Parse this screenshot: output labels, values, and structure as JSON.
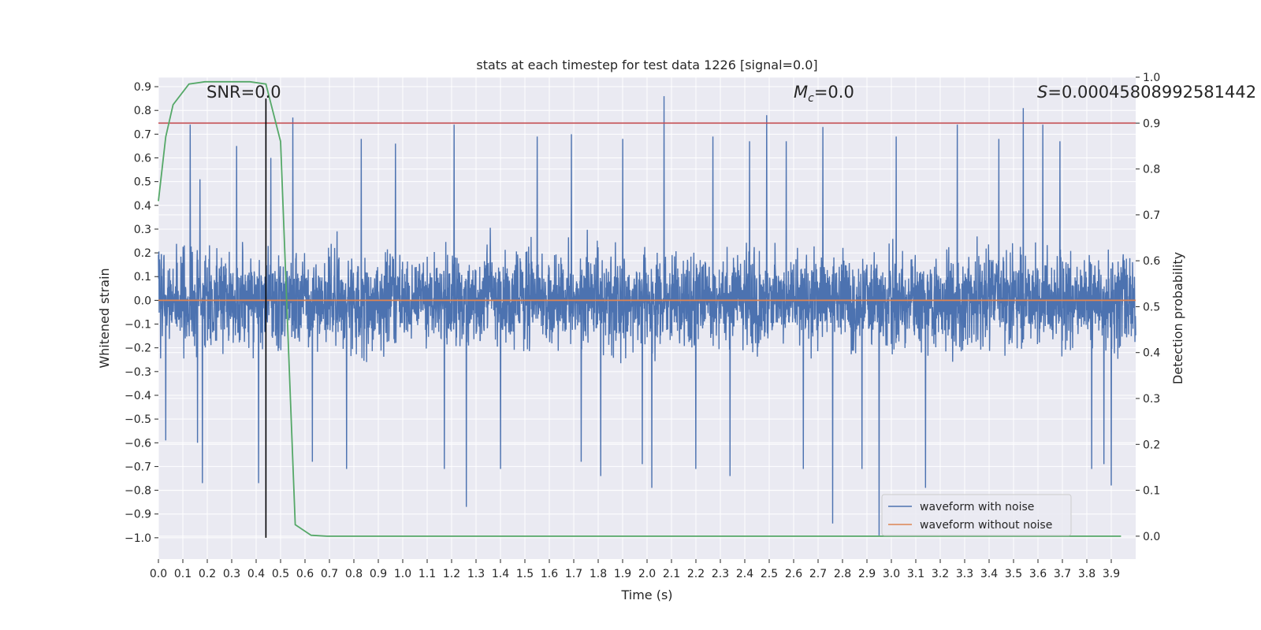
{
  "chart_data": {
    "type": "line",
    "title": "stats at each timestep for test data 1226 [signal=0.0]",
    "xlabel": "Time (s)",
    "ylabel_left": "Whitened strain",
    "ylabel_right": "Detection probability",
    "xlim": [
      0.0,
      4.0
    ],
    "ylim_left": [
      -1.09,
      0.94
    ],
    "ylim_right": [
      -0.05,
      1.0
    ],
    "x_ticks": [
      0.0,
      0.1,
      0.2,
      0.3,
      0.4,
      0.5,
      0.6,
      0.7,
      0.8,
      0.9,
      1.0,
      1.1,
      1.2,
      1.3,
      1.4,
      1.5,
      1.6,
      1.7,
      1.8,
      1.9,
      2.0,
      2.1,
      2.2,
      2.3,
      2.4,
      2.5,
      2.6,
      2.7,
      2.8,
      2.9,
      3.0,
      3.1,
      3.2,
      3.3,
      3.4,
      3.5,
      3.6,
      3.7,
      3.8,
      3.9
    ],
    "x_tick_labels": [
      "0.0",
      "0.1",
      "0.2",
      "0.3",
      "0.4",
      "0.5",
      "0.6",
      "0.7",
      "0.8",
      "0.9",
      "1.0",
      "1.1",
      "1.2",
      "1.3",
      "1.4",
      "1.5",
      "1.6",
      "1.7",
      "1.8",
      "1.9",
      "2.0",
      "2.1",
      "2.2",
      "2.3",
      "2.4",
      "2.5",
      "2.6",
      "2.7",
      "2.8",
      "2.9",
      "3.0",
      "3.1",
      "3.2",
      "3.3",
      "3.4",
      "3.5",
      "3.6",
      "3.7",
      "3.8",
      "3.9"
    ],
    "y_left_ticks": [
      0.9,
      0.8,
      0.7,
      0.6,
      0.5,
      0.4,
      0.3,
      0.2,
      0.1,
      0.0,
      -0.1,
      -0.2,
      -0.3,
      -0.4,
      -0.5,
      -0.6,
      -0.7,
      -0.8,
      -0.9,
      -1.0
    ],
    "y_left_tick_labels": [
      "0.9",
      "0.8",
      "0.7",
      "0.6",
      "0.5",
      "0.4",
      "0.3",
      "0.2",
      "0.1",
      "0.0",
      "−0.1",
      "−0.2",
      "−0.3",
      "−0.4",
      "−0.5",
      "−0.6",
      "−0.7",
      "−0.8",
      "−0.9",
      "−1.0"
    ],
    "y_right_ticks": [
      1.0,
      0.9,
      0.8,
      0.7,
      0.6,
      0.5,
      0.4,
      0.3,
      0.2,
      0.1,
      0.0
    ],
    "y_right_tick_labels": [
      "1.0",
      "0.9",
      "0.8",
      "0.7",
      "0.6",
      "0.5",
      "0.4",
      "0.3",
      "0.2",
      "0.1",
      "0.0"
    ],
    "grid": true,
    "series": [
      {
        "name": "waveform with noise",
        "axis": "left",
        "color": "#4c72b0",
        "style": "dense-noise",
        "x_range": [
          0.0,
          4.0
        ],
        "spikes": [
          {
            "x": 0.03,
            "y": 0.62
          },
          {
            "x": 0.03,
            "y": -0.59
          },
          {
            "x": 0.13,
            "y": 0.74
          },
          {
            "x": 0.16,
            "y": -0.6
          },
          {
            "x": 0.17,
            "y": 0.51
          },
          {
            "x": 0.18,
            "y": -0.77
          },
          {
            "x": 0.32,
            "y": 0.65
          },
          {
            "x": 0.41,
            "y": -0.77
          },
          {
            "x": 0.46,
            "y": 0.6
          },
          {
            "x": 0.55,
            "y": 0.77
          },
          {
            "x": 0.63,
            "y": -0.68
          },
          {
            "x": 0.77,
            "y": -0.71
          },
          {
            "x": 0.83,
            "y": 0.68
          },
          {
            "x": 0.97,
            "y": 0.66
          },
          {
            "x": 1.17,
            "y": -0.71
          },
          {
            "x": 1.21,
            "y": 0.74
          },
          {
            "x": 1.26,
            "y": -0.87
          },
          {
            "x": 1.4,
            "y": -0.71
          },
          {
            "x": 1.55,
            "y": 0.69
          },
          {
            "x": 1.69,
            "y": 0.7
          },
          {
            "x": 1.73,
            "y": -0.68
          },
          {
            "x": 1.81,
            "y": -0.74
          },
          {
            "x": 1.9,
            "y": 0.68
          },
          {
            "x": 1.98,
            "y": -0.69
          },
          {
            "x": 2.02,
            "y": -0.79
          },
          {
            "x": 2.07,
            "y": 0.86
          },
          {
            "x": 2.2,
            "y": -0.71
          },
          {
            "x": 2.27,
            "y": 0.69
          },
          {
            "x": 2.34,
            "y": -0.74
          },
          {
            "x": 2.42,
            "y": 0.67
          },
          {
            "x": 2.49,
            "y": 0.78
          },
          {
            "x": 2.57,
            "y": 0.67
          },
          {
            "x": 2.64,
            "y": -0.71
          },
          {
            "x": 2.72,
            "y": 0.73
          },
          {
            "x": 2.76,
            "y": -0.94
          },
          {
            "x": 2.88,
            "y": -0.71
          },
          {
            "x": 2.95,
            "y": -0.99
          },
          {
            "x": 3.02,
            "y": 0.69
          },
          {
            "x": 3.14,
            "y": -0.79
          },
          {
            "x": 3.27,
            "y": 0.74
          },
          {
            "x": 3.44,
            "y": 0.68
          },
          {
            "x": 3.54,
            "y": 0.81
          },
          {
            "x": 3.62,
            "y": 0.74
          },
          {
            "x": 3.69,
            "y": 0.67
          },
          {
            "x": 3.82,
            "y": -0.71
          },
          {
            "x": 3.87,
            "y": -0.69
          },
          {
            "x": 3.9,
            "y": -0.78
          }
        ]
      },
      {
        "name": "waveform without noise",
        "axis": "left",
        "color": "#dd8452",
        "x": [
          0.0,
          4.0
        ],
        "y": [
          0.0,
          0.0
        ]
      },
      {
        "axis": "right",
        "color": "#55a868",
        "x": [
          0.0,
          0.03,
          0.06,
          0.125,
          0.19,
          0.25,
          0.31,
          0.375,
          0.44,
          0.5,
          0.56,
          0.625,
          0.69,
          0.75,
          1.0,
          1.5,
          2.0,
          2.5,
          3.0,
          3.5,
          3.94
        ],
        "y": [
          0.73,
          0.87,
          0.94,
          0.985,
          0.99,
          0.99,
          0.99,
          0.99,
          0.985,
          0.86,
          0.025,
          0.002,
          0.0,
          0.0,
          0.0,
          0.0,
          0.0,
          0.0,
          0.0,
          0.0,
          0.0
        ]
      }
    ],
    "threshold": {
      "axis": "right",
      "y": 0.9,
      "color": "#c44e52"
    },
    "vertical_marker": {
      "axis": "left",
      "x": 0.44,
      "y_from": -1.0,
      "y_to": 0.85,
      "color": "#000000"
    },
    "annotations": {
      "snr": "SNR=0.0",
      "mc_symbol": "M",
      "mc_sub": "c",
      "mc_value": "=0.0",
      "s_symbol": "S",
      "s_value": "=0.00045808992581442"
    },
    "legend": {
      "placement": "lower-right",
      "entries": [
        "waveform with noise",
        "waveform without noise"
      ]
    }
  }
}
